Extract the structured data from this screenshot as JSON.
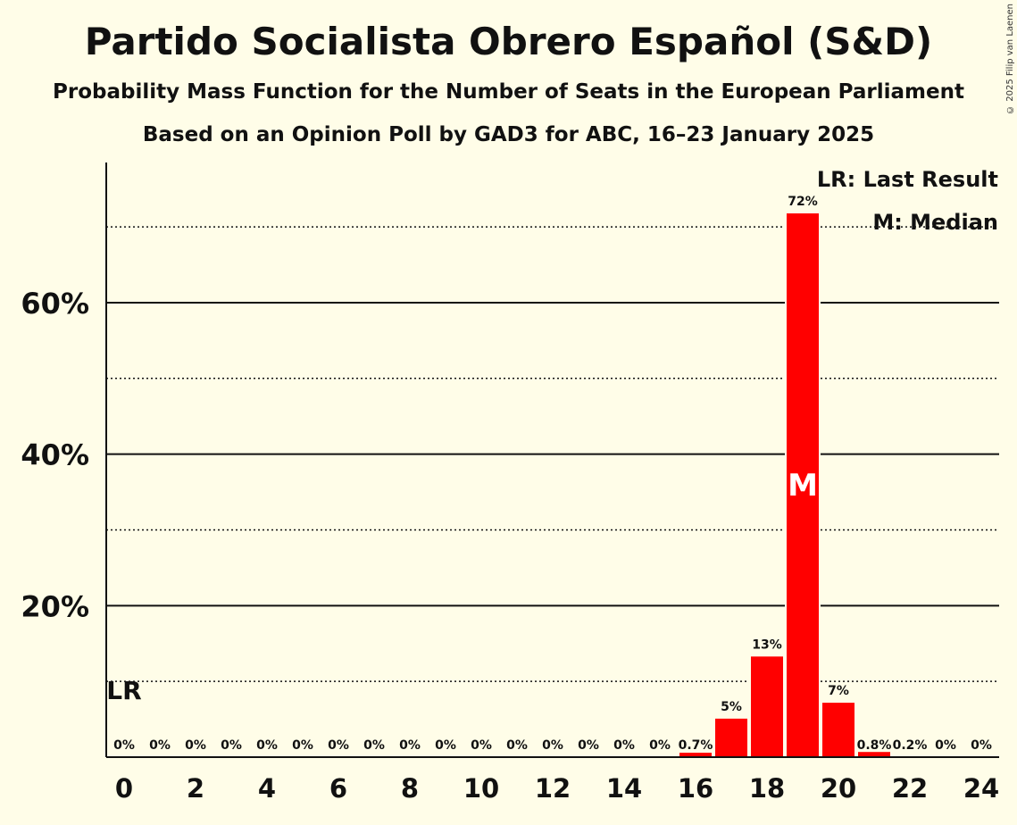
{
  "title": "Partido Socialista Obrero Español (S&D)",
  "subtitle1": "Probability Mass Function for the Number of Seats in the European Parliament",
  "subtitle2": "Based on an Opinion Poll by GAD3 for ABC, 16–23 January 2025",
  "copyright": "© 2025 Filip van Laenen",
  "legend": {
    "lr": "LR: Last Result",
    "m": "M: Median"
  },
  "colors": {
    "bar": "#ff0000",
    "background": "#fffde8",
    "median_text": "#ffffff"
  },
  "chart_data": {
    "type": "bar",
    "categories": [
      0,
      1,
      2,
      3,
      4,
      5,
      6,
      7,
      8,
      9,
      10,
      11,
      12,
      13,
      14,
      15,
      16,
      17,
      18,
      19,
      20,
      21,
      22,
      23,
      24
    ],
    "values": [
      0,
      0,
      0,
      0,
      0,
      0,
      0,
      0,
      0,
      0,
      0,
      0,
      0,
      0,
      0,
      0,
      0.7,
      5,
      13,
      72,
      7,
      0.8,
      0.2,
      0,
      0
    ],
    "data_labels": [
      "0%",
      "0%",
      "0%",
      "0%",
      "0%",
      "0%",
      "0%",
      "0%",
      "0%",
      "0%",
      "0%",
      "0%",
      "0%",
      "0%",
      "0%",
      "0%",
      "0.7%",
      "5%",
      "13%",
      "72%",
      "7%",
      "0.8%",
      "0.2%",
      "0%",
      "0%"
    ],
    "plotted_values": [
      0,
      0,
      0,
      0,
      0,
      0,
      0,
      0,
      0,
      0,
      0,
      0,
      0,
      0,
      0,
      0,
      0.7,
      5.2,
      13.4,
      71.9,
      7.3,
      0.8,
      0.2,
      0,
      0
    ],
    "x_tick_labels": [
      "0",
      "2",
      "4",
      "6",
      "8",
      "10",
      "12",
      "14",
      "16",
      "18",
      "20",
      "22",
      "24"
    ],
    "x_ticks": [
      0,
      2,
      4,
      6,
      8,
      10,
      12,
      14,
      16,
      18,
      20,
      22,
      24
    ],
    "y_tick_labels": [
      "20%",
      "40%",
      "60%"
    ],
    "y_ticks": [
      20,
      40,
      60
    ],
    "y_minor_gridlines": [
      10,
      30,
      50,
      70
    ],
    "ylim": [
      0,
      78.5
    ],
    "last_result_seat": 0,
    "last_result_label": "LR",
    "median_seat": 19,
    "median_label": "M",
    "legend_position": "top-right"
  }
}
